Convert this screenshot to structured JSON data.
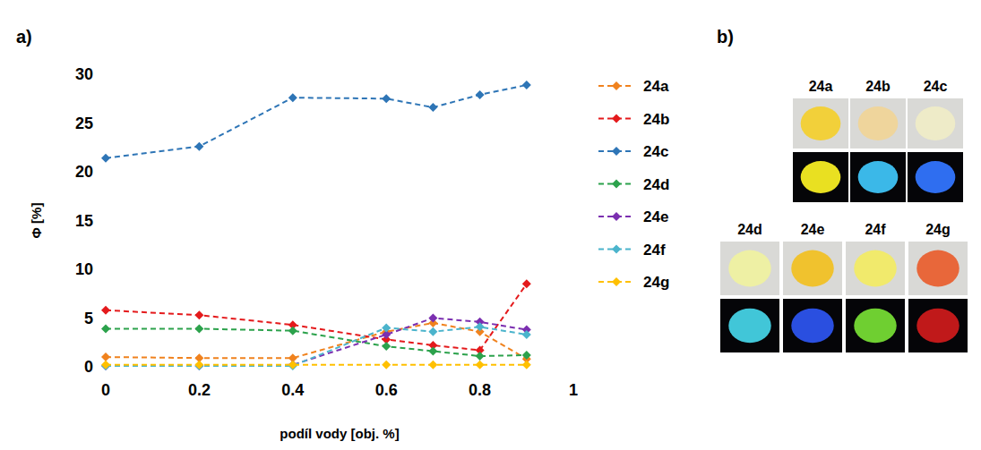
{
  "chart_data": {
    "type": "line",
    "panel": "a)",
    "x_label": "podíl vody [obj. %]",
    "y_label": "Φ [%]",
    "x": [
      0,
      0.2,
      0.4,
      0.6,
      0.7,
      0.8,
      0.9
    ],
    "series": [
      {
        "name": "24a",
        "color": "#f0821e",
        "marker": "diamond",
        "line_style": "dashed",
        "values": [
          1.0,
          0.9,
          0.9,
          3.6,
          4.5,
          3.6,
          0.8
        ]
      },
      {
        "name": "24b",
        "color": "#e41a1c",
        "marker": "diamond",
        "line_style": "dashed",
        "values": [
          5.8,
          5.3,
          4.3,
          2.8,
          2.2,
          1.7,
          8.5
        ]
      },
      {
        "name": "24c",
        "color": "#2e75b6",
        "marker": "diamond",
        "line_style": "dashed",
        "values": [
          21.4,
          22.6,
          27.6,
          27.5,
          26.6,
          27.9,
          28.9
        ]
      },
      {
        "name": "24d",
        "color": "#2ca24c",
        "marker": "diamond",
        "line_style": "dashed",
        "values": [
          3.9,
          3.9,
          3.7,
          2.1,
          1.6,
          1.1,
          1.2
        ]
      },
      {
        "name": "24e",
        "color": "#7b2fb0",
        "marker": "diamond",
        "line_style": "dashed",
        "values": [
          0.1,
          0.1,
          0.2,
          3.3,
          5.0,
          4.6,
          3.8
        ]
      },
      {
        "name": "24f",
        "color": "#4bb4cc",
        "marker": "diamond",
        "line_style": "dashed",
        "values": [
          0.1,
          0.1,
          0.1,
          4.0,
          3.6,
          4.1,
          3.3
        ]
      },
      {
        "name": "24g",
        "color": "#ffc000",
        "marker": "diamond",
        "line_style": "dashed",
        "values": [
          0.2,
          0.2,
          0.2,
          0.2,
          0.2,
          0.2,
          0.2
        ]
      }
    ],
    "xlim": [
      0,
      1
    ],
    "xticks": [
      0,
      0.2,
      0.4,
      0.6,
      0.8,
      1
    ],
    "ylim": [
      0,
      30
    ],
    "yticks": [
      0,
      5,
      10,
      15,
      20,
      25,
      30
    ],
    "grid": false,
    "legend": "right"
  },
  "photo_panel": {
    "panel": "b)",
    "samples": [
      {
        "name": "24a",
        "color": "#f2d03a",
        "uv_color": "#e9e021"
      },
      {
        "name": "24b",
        "color": "#efd59c",
        "uv_color": "#3bb8e8"
      },
      {
        "name": "24c",
        "color": "#eeebc8",
        "uv_color": "#2f6ef0"
      },
      {
        "name": "24d",
        "color": "#eef0a4",
        "uv_color": "#41c6d8"
      },
      {
        "name": "24e",
        "color": "#f0c22e",
        "uv_color": "#2a4fe0"
      },
      {
        "name": "24f",
        "color": "#f1ea6c",
        "uv_color": "#6fcf31"
      },
      {
        "name": "24g",
        "color": "#e8673a",
        "uv_color": "#c0191a"
      }
    ]
  }
}
